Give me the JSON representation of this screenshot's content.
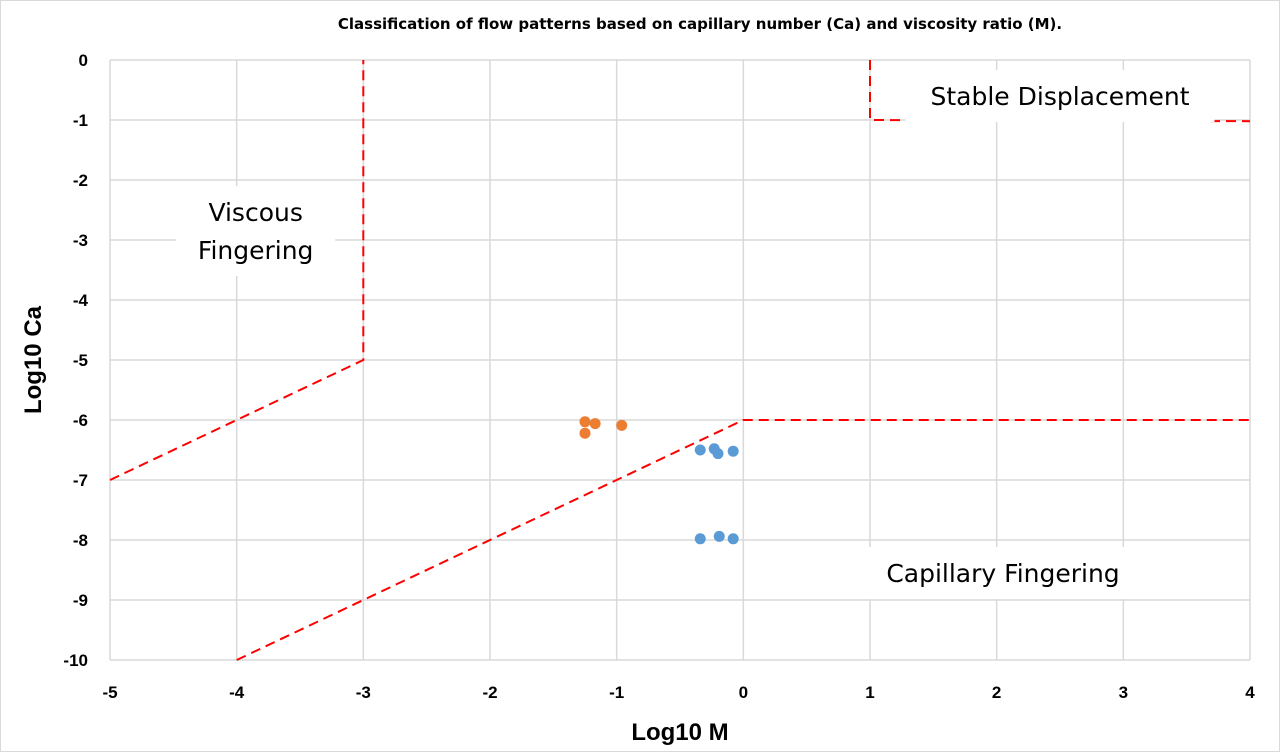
{
  "chart_data": {
    "type": "scatter",
    "title": "Classification of flow patterns based on capillary number (Ca) and viscosity ratio (M).",
    "xlabel": "Log10 M",
    "ylabel": "Log10 Ca",
    "xlim": [
      -5,
      4
    ],
    "ylim": [
      -10,
      0
    ],
    "xticks": [
      -5,
      -4,
      -3,
      -2,
      -1,
      0,
      1,
      2,
      3,
      4
    ],
    "yticks": [
      0,
      -1,
      -2,
      -3,
      -4,
      -5,
      -6,
      -7,
      -8,
      -9,
      -10
    ],
    "grid": true,
    "legend": "none",
    "series": [
      {
        "color": "#ed7d31",
        "points": [
          {
            "x": -1.25,
            "y": -6.03
          },
          {
            "x": -1.17,
            "y": -6.06
          },
          {
            "x": -0.96,
            "y": -6.09
          },
          {
            "x": -1.25,
            "y": -6.22
          }
        ]
      },
      {
        "color": "#5b9bd5",
        "points": [
          {
            "x": -0.34,
            "y": -6.5
          },
          {
            "x": -0.23,
            "y": -6.48
          },
          {
            "x": -0.2,
            "y": -6.56
          },
          {
            "x": -0.08,
            "y": -6.52
          },
          {
            "x": -0.34,
            "y": -7.98
          },
          {
            "x": -0.19,
            "y": -7.94
          },
          {
            "x": -0.08,
            "y": -7.98
          }
        ]
      }
    ],
    "boundaries": [
      {
        "name": "viscous-fingering-boundary",
        "color": "#ff0000",
        "points": [
          [
            -5,
            -7
          ],
          [
            -3,
            -5
          ],
          [
            -3,
            0
          ]
        ]
      },
      {
        "name": "capillary-fingering-boundary",
        "color": "#ff0000",
        "points": [
          [
            -4,
            -10
          ],
          [
            0,
            -6
          ],
          [
            4,
            -6
          ]
        ]
      },
      {
        "name": "stable-displacement-boundary",
        "color": "#ff0000",
        "points": [
          [
            1,
            0
          ],
          [
            1,
            -1
          ],
          [
            4,
            -1.02
          ]
        ]
      }
    ],
    "annotations": [
      {
        "name": "viscous-fingering",
        "lines": [
          "Viscous",
          "Fingering"
        ],
        "x": -3.85,
        "y": -2.85
      },
      {
        "name": "stable-displacement",
        "lines": [
          "Stable Displacement"
        ],
        "x": 2.5,
        "y": -0.6
      },
      {
        "name": "capillary-fingering",
        "lines": [
          "Capillary Fingering"
        ],
        "x": 2.05,
        "y": -8.55
      }
    ]
  }
}
